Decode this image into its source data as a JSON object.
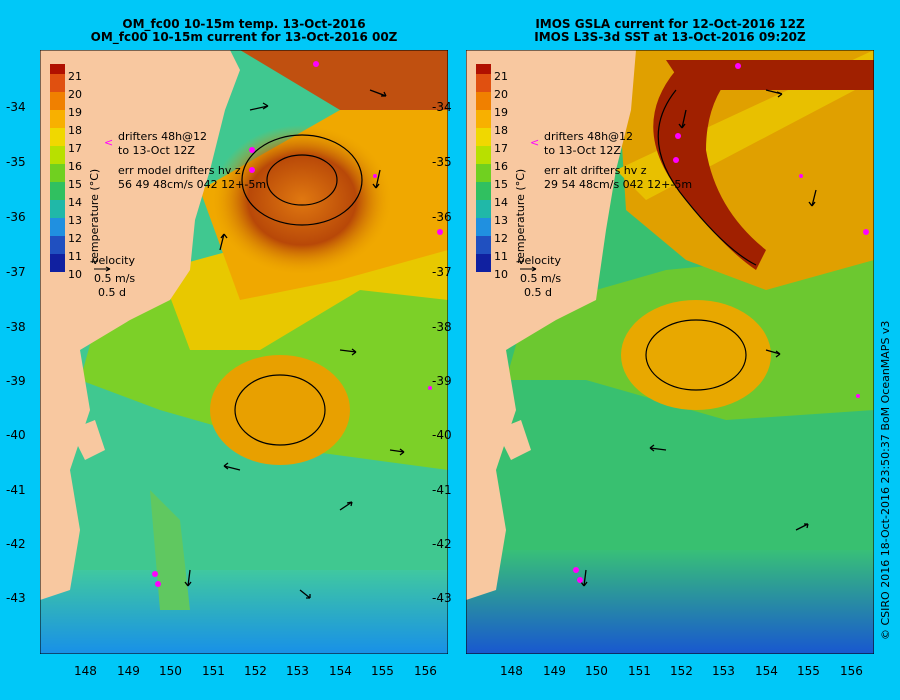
{
  "panels": [
    {
      "title_line1": "OM_fc00 10-15m temp. 13-Oct-2016",
      "title_line2": "OM_fc00 10-15m current for 13-Oct-2016 00Z",
      "legend": {
        "drifters_line1": "drifters 48h@12",
        "drifters_line2": "to 13-Oct 12Z",
        "err_line1": "err model drifters hv z",
        "err_line2": "56 49 48cm/s 042 12+-5m",
        "velocity_label": "velocity",
        "velocity_scale": "0.5 m/s",
        "velocity_days": "0.5 d"
      }
    },
    {
      "title_line1": "IMOS GSLA current for 12-Oct-2016 12Z",
      "title_line2": "IMOS L3S-3d SST at 13-Oct-2016 09:20Z",
      "legend": {
        "drifters_line1": "drifters 48h@12",
        "drifters_line2": "to 13-Oct 12Z",
        "err_line1": "err alt drifters hv z",
        "err_line2": "29 54 48cm/s 042 12+-5m",
        "velocity_label": "velocity",
        "velocity_scale": "0.5 m/s",
        "velocity_days": "0.5 d"
      }
    }
  ],
  "colorbar": {
    "label": "temperature (°C)",
    "ticks": [
      "21",
      "20",
      "19",
      "18",
      "17",
      "16",
      "15",
      "14",
      "13",
      "12",
      "11",
      "10"
    ]
  },
  "lat_ticks": [
    "-34",
    "-35",
    "-36",
    "-37",
    "-38",
    "-39",
    "-40",
    "-41",
    "-42",
    "-43"
  ],
  "lon_ticks": [
    "148",
    "149",
    "150",
    "151",
    "152",
    "153",
    "154",
    "155",
    "156"
  ],
  "credit": "© CSIRO 2016   18-Oct-2016 23:50:37 BoM OceanMAPS v3",
  "colors": {
    "background": "#00c8f8",
    "land": "#f8c8a0",
    "drifter": "#ff00ff"
  }
}
